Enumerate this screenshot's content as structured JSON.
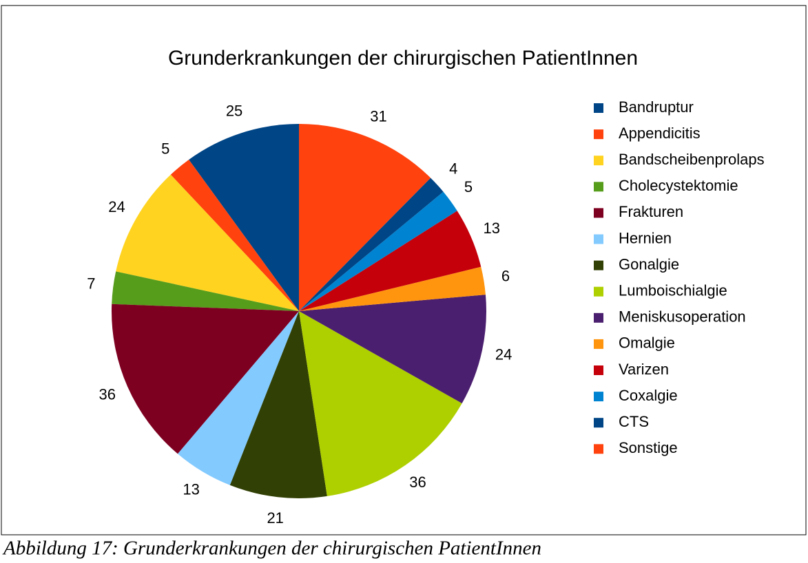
{
  "chart_data": {
    "type": "pie",
    "title": "Grunderkrankungen der chirurgischen PatientInnen",
    "categories": [
      "Bandruptur",
      "Appendicitis",
      "Bandscheibenprolaps",
      "Cholecystektomie",
      "Frakturen",
      "Hernien",
      "Gonalgie",
      "Lumboischialgie",
      "Meniskusoperation",
      "Omalgie",
      "Varizen",
      "Coxalgie",
      "CTS",
      "Sonstige"
    ],
    "values": [
      25,
      5,
      24,
      7,
      36,
      13,
      21,
      36,
      24,
      6,
      13,
      5,
      4,
      31
    ],
    "colors": [
      "#004586",
      "#ff420e",
      "#ffd320",
      "#579d1c",
      "#7e0021",
      "#83caff",
      "#314004",
      "#aecf00",
      "#4b1f6f",
      "#ff950e",
      "#c5000b",
      "#0084d1",
      "#004586",
      "#ff420e"
    ],
    "legend": "right"
  },
  "caption": "Abbildung 17: Grunderkrankungen der chirurgischen PatientInnen"
}
